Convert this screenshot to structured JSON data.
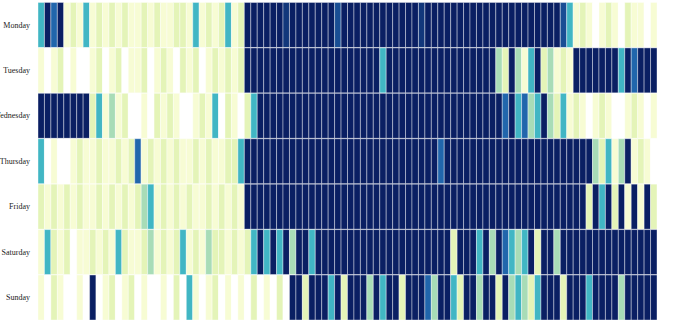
{
  "chart_data": {
    "type": "heatmap",
    "rows": [
      "Monday",
      "Tuesday",
      "Wednesday",
      "Thursday",
      "Friday",
      "Saturday",
      "Sunday"
    ],
    "zlim": [
      0,
      100
    ],
    "tick_labels": "y",
    "cells": [
      [
        60,
        95,
        80,
        95,
        10,
        20,
        10,
        60,
        10,
        20,
        10,
        20,
        10,
        20,
        10,
        10,
        20,
        10,
        20,
        10,
        10,
        20,
        20,
        10,
        60,
        10,
        20,
        10,
        20,
        60,
        10,
        20,
        95,
        95,
        95,
        95,
        95,
        95,
        90,
        95,
        95,
        95,
        95,
        95,
        95,
        95,
        85,
        95,
        95,
        95,
        95,
        95,
        95,
        95,
        95,
        95,
        95,
        95,
        95,
        90,
        95,
        95,
        95,
        95,
        95,
        95,
        95,
        95,
        95,
        95,
        95,
        95,
        95,
        95,
        95,
        95,
        95,
        95,
        95,
        95,
        95,
        85,
        60,
        10,
        20,
        10,
        0,
        10,
        20,
        10,
        0,
        20,
        10,
        10,
        0,
        10
      ],
      [
        10,
        0,
        10,
        20,
        0,
        10,
        0,
        0,
        10,
        20,
        0,
        10,
        20,
        0,
        10,
        10,
        20,
        0,
        10,
        20,
        10,
        0,
        20,
        10,
        20,
        0,
        10,
        20,
        10,
        20,
        10,
        20,
        95,
        95,
        95,
        95,
        95,
        95,
        95,
        95,
        95,
        95,
        95,
        95,
        95,
        95,
        95,
        95,
        95,
        95,
        95,
        95,
        95,
        60,
        95,
        95,
        95,
        95,
        95,
        95,
        95,
        95,
        95,
        95,
        95,
        95,
        95,
        95,
        95,
        95,
        95,
        40,
        20,
        95,
        40,
        10,
        60,
        95,
        20,
        40,
        10,
        20,
        10,
        95,
        95,
        95,
        95,
        95,
        95,
        95,
        60,
        95,
        80,
        95,
        95,
        95
      ],
      [
        95,
        95,
        95,
        95,
        95,
        95,
        95,
        95,
        20,
        60,
        10,
        40,
        10,
        20,
        0,
        0,
        10,
        0,
        20,
        10,
        20,
        10,
        0,
        0,
        10,
        20,
        10,
        60,
        0,
        20,
        10,
        0,
        20,
        60,
        95,
        95,
        95,
        95,
        95,
        95,
        95,
        95,
        95,
        95,
        95,
        95,
        95,
        95,
        95,
        95,
        95,
        95,
        95,
        95,
        95,
        95,
        95,
        95,
        95,
        95,
        95,
        95,
        95,
        95,
        95,
        95,
        95,
        95,
        95,
        95,
        95,
        95,
        80,
        95,
        60,
        80,
        40,
        60,
        95,
        40,
        20,
        60,
        10,
        20,
        10,
        0,
        10,
        20,
        10,
        0,
        0,
        10,
        20,
        10,
        0,
        10
      ],
      [
        60,
        0,
        10,
        0,
        0,
        10,
        20,
        10,
        10,
        20,
        10,
        10,
        20,
        10,
        20,
        80,
        10,
        20,
        10,
        20,
        10,
        20,
        10,
        10,
        20,
        10,
        20,
        10,
        10,
        20,
        20,
        60,
        95,
        95,
        95,
        95,
        95,
        95,
        95,
        95,
        95,
        95,
        95,
        95,
        95,
        95,
        95,
        95,
        95,
        95,
        95,
        95,
        95,
        95,
        95,
        95,
        95,
        95,
        95,
        95,
        95,
        95,
        80,
        95,
        95,
        95,
        95,
        95,
        95,
        95,
        95,
        95,
        95,
        95,
        95,
        95,
        95,
        95,
        95,
        95,
        95,
        95,
        95,
        95,
        95,
        95,
        40,
        20,
        60,
        10,
        40,
        95,
        10,
        20,
        10,
        0
      ],
      [
        20,
        10,
        20,
        10,
        20,
        10,
        20,
        10,
        10,
        20,
        10,
        20,
        10,
        20,
        10,
        20,
        40,
        60,
        10,
        20,
        10,
        20,
        10,
        20,
        10,
        10,
        20,
        10,
        20,
        10,
        20,
        10,
        95,
        95,
        95,
        95,
        95,
        95,
        95,
        95,
        95,
        95,
        95,
        95,
        95,
        95,
        95,
        95,
        95,
        95,
        95,
        95,
        95,
        95,
        95,
        95,
        95,
        95,
        95,
        95,
        95,
        95,
        95,
        95,
        95,
        95,
        95,
        95,
        95,
        95,
        95,
        95,
        95,
        95,
        95,
        95,
        95,
        95,
        95,
        95,
        95,
        95,
        95,
        95,
        95,
        20,
        95,
        60,
        95,
        20,
        95,
        10,
        95,
        10,
        95,
        20
      ],
      [
        10,
        60,
        20,
        10,
        20,
        0,
        10,
        10,
        20,
        10,
        20,
        10,
        60,
        20,
        10,
        10,
        20,
        40,
        10,
        20,
        10,
        20,
        60,
        10,
        20,
        10,
        40,
        20,
        20,
        10,
        20,
        10,
        20,
        60,
        95,
        60,
        95,
        60,
        95,
        40,
        95,
        95,
        60,
        95,
        95,
        95,
        95,
        95,
        95,
        95,
        95,
        95,
        95,
        95,
        95,
        95,
        95,
        95,
        95,
        95,
        95,
        95,
        95,
        95,
        20,
        95,
        95,
        95,
        60,
        95,
        40,
        95,
        80,
        60,
        40,
        60,
        95,
        20,
        95,
        95,
        40,
        95,
        95,
        95,
        95,
        95,
        95,
        95,
        95,
        95,
        95,
        95,
        95,
        95,
        95,
        95
      ],
      [
        10,
        0,
        20,
        10,
        0,
        0,
        10,
        0,
        95,
        0,
        10,
        20,
        0,
        10,
        20,
        0,
        10,
        0,
        0,
        10,
        0,
        20,
        0,
        60,
        10,
        0,
        10,
        20,
        0,
        10,
        0,
        10,
        0,
        20,
        0,
        10,
        0,
        20,
        0,
        95,
        95,
        20,
        95,
        95,
        95,
        60,
        95,
        20,
        95,
        95,
        95,
        40,
        95,
        60,
        95,
        95,
        20,
        95,
        95,
        95,
        80,
        40,
        95,
        95,
        60,
        20,
        95,
        95,
        40,
        95,
        95,
        20,
        95,
        40,
        60,
        40,
        20,
        60,
        95,
        95,
        95,
        20,
        95,
        95,
        95,
        60,
        95,
        95,
        95,
        95,
        40,
        95,
        95,
        95,
        95,
        95
      ]
    ]
  }
}
